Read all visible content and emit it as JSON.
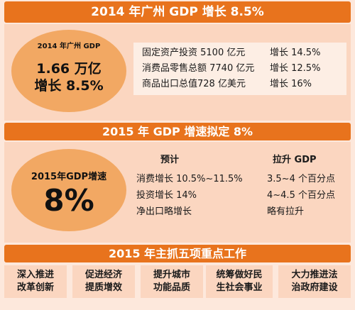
{
  "section1": {
    "banner": "2014 年广州 GDP 增长 8.5%",
    "oval_title": "2014 年广州 GDP",
    "oval_line1": "1.66 万亿",
    "oval_line2": "增长 8.5%",
    "rows": [
      {
        "label": "固定资产投资 5100 亿元",
        "growth": "增长 14.5%"
      },
      {
        "label": "消费品零售总额 7740 亿元",
        "growth": "增长 12.5%"
      },
      {
        "label": "商品出口总值728 亿美元",
        "growth": "增长 16%"
      }
    ]
  },
  "section2": {
    "banner": "2015 年 GDP 增速拟定 8%",
    "oval_title": "2015年GDP增速",
    "oval_value": "8%",
    "col1_header": "预计",
    "col2_header": "拉升 GDP",
    "rows": [
      {
        "label": "消费增长 10.5%~11.5%",
        "effect": "3.5~4 个百分点"
      },
      {
        "label": "投资增长 14%",
        "effect": "4~4.5 个百分点"
      },
      {
        "label": "净出口略增长",
        "effect": "略有拉升"
      }
    ]
  },
  "section3": {
    "banner": "2015 年主抓五项重点工作",
    "tasks": [
      {
        "line1": "深入推进",
        "line2": "改革创新"
      },
      {
        "line1": "促进经济",
        "line2": "提质增效"
      },
      {
        "line1": "提升城市",
        "line2": "功能品质"
      },
      {
        "line1": "统筹做好民",
        "line2": "生社会事业"
      },
      {
        "line1": "大力推进法",
        "line2": "治政府建设"
      }
    ]
  },
  "colors": {
    "banner": "#e8731d",
    "panel": "#fbd6c0",
    "oval": "#f2a863",
    "background": "#fde8dc"
  }
}
